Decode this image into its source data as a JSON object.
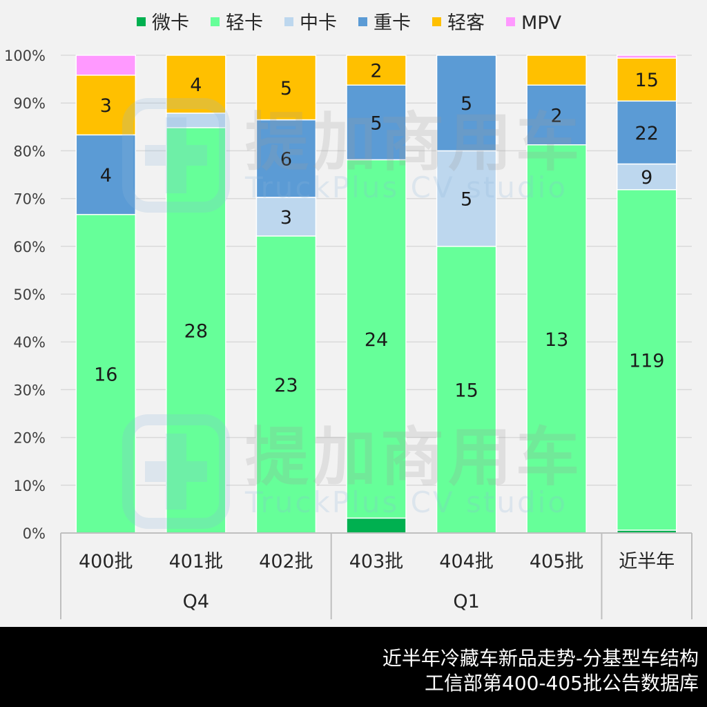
{
  "chart_data": {
    "type": "bar",
    "stacked": "percent",
    "categories": [
      "400批",
      "401批",
      "402批",
      "403批",
      "404批",
      "405批",
      "近半年"
    ],
    "groups": [
      {
        "label": "Q4",
        "categories": [
          "400批",
          "401批",
          "402批"
        ]
      },
      {
        "label": "Q1",
        "categories": [
          "403批",
          "404批",
          "405批"
        ]
      },
      {
        "label": "",
        "categories": [
          "近半年"
        ]
      }
    ],
    "series": [
      {
        "name": "微卡",
        "color": "#00b050",
        "values": [
          0,
          0,
          0,
          1,
          0,
          0,
          1
        ]
      },
      {
        "name": "轻卡",
        "color": "#66ff99",
        "values": [
          16,
          28,
          23,
          24,
          15,
          13,
          119
        ]
      },
      {
        "name": "中卡",
        "color": "#bdd7ee",
        "values": [
          0,
          1,
          3,
          0,
          5,
          0,
          9
        ]
      },
      {
        "name": "重卡",
        "color": "#5b9bd5",
        "values": [
          4,
          0,
          6,
          5,
          5,
          2,
          22
        ]
      },
      {
        "name": "轻客",
        "color": "#ffc000",
        "values": [
          3,
          4,
          5,
          2,
          0,
          1,
          15
        ]
      },
      {
        "name": "MPV",
        "color": "#ff99ff",
        "values": [
          1,
          0,
          0,
          0,
          0,
          0,
          1
        ]
      }
    ],
    "data_labels": [
      [
        null,
        null,
        null,
        null,
        null,
        null,
        null
      ],
      [
        "16",
        "28",
        "23",
        "24",
        "15",
        "13",
        "119"
      ],
      [
        null,
        null,
        "3",
        null,
        "5",
        null,
        "9"
      ],
      [
        "4",
        null,
        "6",
        "5",
        "5",
        "2",
        "22"
      ],
      [
        "3",
        "4",
        "5",
        "2",
        null,
        null,
        "15"
      ],
      [
        null,
        null,
        null,
        null,
        null,
        null,
        null
      ]
    ],
    "yticks": [
      "0%",
      "10%",
      "20%",
      "30%",
      "40%",
      "50%",
      "60%",
      "70%",
      "80%",
      "90%",
      "100%"
    ],
    "ylim": [
      0,
      100
    ],
    "grid": true,
    "legend": "top"
  },
  "watermark": {
    "brand": "提加商用车",
    "sub": "TruckPlus CV studio"
  },
  "footer": {
    "line1": "近半年冷藏车新品走势-分基型车结构",
    "line2": "工信部第400-405批公告数据库"
  }
}
